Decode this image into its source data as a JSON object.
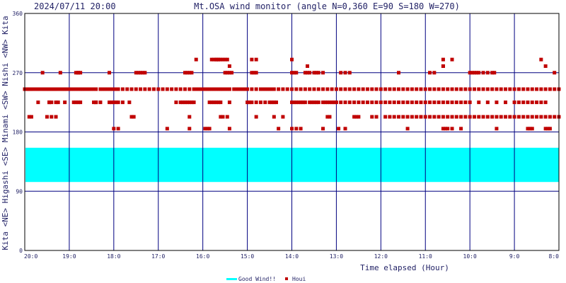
{
  "header": {
    "datetime": "2024/07/11 20:00",
    "title": "Mt.OSA wind monitor (angle N=0,360 E=90 S=180 W=270)"
  },
  "chart_data": {
    "type": "scatter",
    "xlabel": "Time elapsed (Hour)",
    "ylabel": "Kita <NE> Higashi <SE> Minami <SW> Nishi <NW> Kita",
    "ylim": [
      0,
      360
    ],
    "yticks": [
      0,
      90,
      180,
      270,
      360
    ],
    "xticks": [
      "20:0",
      "19:0",
      "18:0",
      "17:0",
      "16:0",
      "15:0",
      "14:0",
      "13:0",
      "12:0",
      "11:0",
      "10:0",
      "9:0",
      "8:0"
    ],
    "grid": true,
    "good_wind_band": [
      104,
      156
    ],
    "colors": {
      "good_wind": "#00ffff",
      "houi": "#c00000",
      "grid": "#000080",
      "frame": "#000000"
    },
    "legend": [
      {
        "label": "Good Wind!!",
        "marker": "line",
        "color": "#00ffff"
      },
      {
        "label": "Houi",
        "marker": "square",
        "color": "#c00000"
      }
    ],
    "series": [
      {
        "name": "Houi",
        "hours": [
          0.0,
          0.03,
          0.06,
          0.09,
          0.12,
          0.15,
          0.18,
          0.21,
          0.25,
          0.28,
          0.3,
          0.33,
          0.4,
          0.42,
          0.45,
          0.48,
          0.5,
          0.53,
          0.55,
          0.58,
          0.6,
          0.62,
          0.65,
          0.67,
          0.7,
          0.72,
          0.75,
          0.8,
          0.83,
          0.85,
          0.88,
          0.9,
          0.93,
          0.95,
          1.0,
          1.05,
          1.1,
          1.15,
          1.2,
          1.25,
          1.3,
          1.35,
          1.4,
          1.45,
          1.5,
          1.55,
          1.6,
          1.7,
          1.75,
          1.8,
          1.85,
          1.9,
          1.95,
          2.0,
          2.05,
          2.1,
          2.2,
          2.3,
          2.4,
          2.5,
          2.6,
          2.7,
          2.8,
          2.9,
          3.0,
          3.1,
          3.2,
          3.3,
          3.4,
          3.5,
          3.6,
          3.7,
          3.8,
          3.85,
          3.9,
          3.95,
          4.0,
          4.05,
          4.1,
          4.15,
          4.2,
          4.25,
          4.3,
          4.35,
          4.4,
          4.45,
          4.5,
          4.55,
          4.6,
          4.7,
          4.75,
          4.8,
          4.85,
          4.9,
          4.95,
          5.0,
          5.1,
          5.2,
          5.3,
          5.35,
          5.4,
          5.45,
          5.5,
          5.55,
          5.6,
          5.7,
          5.8,
          5.9,
          6.0,
          6.1,
          6.2,
          6.3,
          6.4,
          6.5,
          6.6,
          6.7,
          6.8,
          6.9,
          7.0,
          7.1,
          7.2,
          7.3,
          7.4,
          7.5,
          7.6,
          7.7,
          7.8,
          7.9,
          8.0,
          8.1,
          8.2,
          8.3,
          8.4,
          8.5,
          8.6,
          8.7,
          8.8,
          8.9,
          9.0,
          9.1,
          9.2,
          9.3,
          9.4,
          9.5,
          9.6,
          9.7,
          9.8,
          9.9,
          10.0,
          10.1,
          10.2,
          10.3,
          10.4,
          10.5,
          10.6,
          10.7,
          10.8,
          10.9,
          11.0,
          11.1,
          11.2,
          11.3,
          11.4,
          11.5,
          11.6,
          11.7,
          11.8,
          11.9,
          12.0,
          0.05,
          0.08,
          0.14,
          0.3,
          0.55,
          0.6,
          0.7,
          0.75,
          1.1,
          1.15,
          1.2,
          1.25,
          1.6,
          1.7,
          1.9,
          1.95,
          2.0,
          2.05,
          2.1,
          2.2,
          3.4,
          3.5,
          3.55,
          3.6,
          3.65,
          3.7,
          3.75,
          3.8,
          4.15,
          4.2,
          4.25,
          4.3,
          4.35,
          4.4,
          4.6,
          5.0,
          5.05,
          5.1,
          5.2,
          5.3,
          5.4,
          5.5,
          5.55,
          5.6,
          5.65,
          6.0,
          6.05,
          6.1,
          6.15,
          6.2,
          6.25,
          6.3,
          6.4,
          6.45,
          6.5,
          6.55,
          6.6,
          6.7,
          6.75,
          6.8,
          6.85,
          6.9,
          6.95,
          7.0,
          7.1,
          7.2,
          7.3,
          7.4,
          7.5,
          7.6,
          7.7,
          7.8,
          7.9,
          8.0,
          8.1,
          8.2,
          8.3,
          8.4,
          8.5,
          8.6,
          8.7,
          8.8,
          8.9,
          9.0,
          9.1,
          9.2,
          9.3,
          9.4,
          9.5,
          9.6,
          9.7,
          9.8,
          9.9,
          10.0,
          10.2,
          10.4,
          10.6,
          10.8,
          11.0,
          11.1,
          11.2,
          11.3,
          11.4,
          11.5,
          11.6,
          11.7,
          0.55,
          0.9,
          1.55,
          1.6,
          2.35,
          2.4,
          2.45,
          3.7,
          4.4,
          4.45,
          4.55,
          5.2,
          5.6,
          5.8,
          6.8,
          6.85,
          7.4,
          7.45,
          7.5,
          7.8,
          7.9,
          8.1,
          8.2,
          8.3,
          8.4,
          8.5,
          8.6,
          8.7,
          8.8,
          8.9,
          9.0,
          9.1,
          9.2,
          9.3,
          9.4,
          9.5,
          9.6,
          9.7,
          9.8,
          9.9,
          10.0,
          10.1,
          10.2,
          10.3,
          10.4,
          10.5,
          10.6,
          10.7,
          10.8,
          10.9,
          11.0,
          11.1,
          11.2,
          11.3,
          11.4,
          11.5,
          11.6,
          11.7,
          11.8,
          11.9,
          12.0,
          0.1,
          0.15,
          0.5,
          0.6,
          0.7,
          1.15,
          1.2,
          1.25,
          2.5,
          2.55,
          2.6,
          2.65,
          2.7,
          3.6,
          3.65,
          3.7,
          3.75,
          4.5,
          4.55,
          4.6,
          4.65,
          5.1,
          5.15,
          5.2,
          6.0,
          6.05,
          6.1,
          6.3,
          6.35,
          6.4,
          6.5,
          6.55,
          6.6,
          6.7,
          7.1,
          7.2,
          7.3,
          8.4,
          9.1,
          9.2,
          10.0,
          10.05,
          10.1,
          10.15,
          10.2,
          10.3,
          10.4,
          10.5,
          10.55,
          11.9,
          0.4,
          0.8,
          1.2,
          1.9,
          2.0,
          2.1,
          3.7,
          4.6,
          5.7,
          6.0,
          6.1,
          6.2,
          6.7,
          7.05,
          7.2,
          8.6,
          9.4,
          9.45,
          9.5,
          9.6,
          9.8,
          10.6,
          11.3,
          11.35,
          11.4,
          11.7,
          11.75,
          11.8,
          3.2,
          4.05,
          4.1,
          4.15,
          4.2,
          4.25,
          4.3,
          4.35,
          4.4,
          4.45,
          4.5,
          4.55,
          5.1,
          5.2,
          9.4,
          9.6,
          11.6,
          3.85,
          4.3,
          4.35,
          6.0,
          6.35,
          9.4,
          4.6,
          9.4,
          11.7
        ],
        "degrees": [
          245,
          245,
          245,
          245,
          245,
          245,
          245,
          245,
          245,
          245,
          245,
          245,
          245,
          245,
          245,
          245,
          245,
          245,
          245,
          245,
          245,
          245,
          245,
          245,
          245,
          245,
          245,
          245,
          245,
          245,
          245,
          245,
          245,
          245,
          245,
          245,
          245,
          245,
          245,
          245,
          245,
          245,
          245,
          245,
          245,
          245,
          245,
          245,
          245,
          245,
          245,
          245,
          245,
          245,
          245,
          245,
          245,
          245,
          245,
          245,
          245,
          245,
          245,
          245,
          245,
          245,
          245,
          245,
          245,
          245,
          245,
          245,
          245,
          245,
          245,
          245,
          245,
          245,
          245,
          245,
          245,
          245,
          245,
          245,
          245,
          245,
          245,
          245,
          245,
          245,
          245,
          245,
          245,
          245,
          245,
          245,
          245,
          245,
          245,
          245,
          245,
          245,
          245,
          245,
          245,
          245,
          245,
          245,
          245,
          245,
          245,
          245,
          245,
          245,
          245,
          245,
          245,
          245,
          245,
          245,
          245,
          245,
          245,
          245,
          245,
          245,
          245,
          245,
          245,
          245,
          245,
          245,
          245,
          245,
          245,
          245,
          245,
          245,
          245,
          245,
          245,
          245,
          245,
          245,
          245,
          245,
          245,
          245,
          245,
          245,
          245,
          245,
          245,
          245,
          245,
          245,
          245,
          245,
          245,
          245,
          245,
          245,
          245,
          245,
          245,
          245,
          245,
          245,
          245,
          245,
          245,
          245,
          225,
          225,
          225,
          225,
          225,
          225,
          225,
          225,
          225,
          225,
          225,
          225,
          225,
          225,
          225,
          225,
          225,
          225,
          225,
          225,
          225,
          225,
          225,
          225,
          225,
          225,
          225,
          225,
          225,
          225,
          225,
          225,
          225,
          225,
          225,
          225,
          225,
          225,
          225,
          225,
          225,
          225,
          225,
          225,
          225,
          225,
          225,
          225,
          225,
          225,
          225,
          225,
          225,
          225,
          225,
          225,
          225,
          225,
          225,
          225,
          225,
          225,
          225,
          225,
          225,
          225,
          225,
          225,
          225,
          225,
          225,
          225,
          225,
          225,
          225,
          225,
          225,
          225,
          225,
          225,
          225,
          225,
          225,
          225,
          225,
          225,
          225,
          225,
          225,
          225,
          225,
          225,
          225,
          225,
          225,
          225,
          225,
          225,
          225,
          225,
          225,
          225,
          225,
          225,
          225,
          225,
          225,
          225,
          203,
          203,
          203,
          203,
          203,
          203,
          203,
          203,
          203,
          203,
          203,
          203,
          203,
          203,
          203,
          203,
          203,
          203,
          203,
          203,
          203,
          203,
          203,
          203,
          203,
          203,
          203,
          203,
          203,
          203,
          203,
          203,
          203,
          203,
          203,
          203,
          203,
          203,
          203,
          203,
          203,
          203,
          203,
          203,
          203,
          203,
          203,
          203,
          203,
          203,
          203,
          203,
          203,
          203,
          203,
          203,
          203,
          203,
          203,
          203,
          203,
          270,
          270,
          270,
          270,
          270,
          270,
          270,
          270,
          270,
          270,
          270,
          270,
          270,
          270,
          270,
          270,
          270,
          270,
          270,
          270,
          270,
          270,
          270,
          270,
          270,
          270,
          270,
          270,
          270,
          270,
          270,
          270,
          270,
          270,
          270,
          270,
          270,
          270,
          270,
          270,
          270,
          270,
          270,
          270,
          270,
          270,
          270,
          270,
          270,
          185,
          185,
          185,
          185,
          185,
          185,
          185,
          185,
          185,
          185,
          185,
          185,
          185,
          185,
          185,
          185,
          185,
          185,
          185,
          185,
          185,
          185,
          185,
          185,
          185,
          185,
          185,
          185,
          290,
          290,
          290,
          290,
          290,
          290,
          290,
          290,
          290,
          290,
          290,
          290,
          290,
          290,
          290,
          290,
          290,
          280,
          280,
          280,
          280,
          280,
          280,
          313,
          160,
          160
        ]
      }
    ]
  }
}
